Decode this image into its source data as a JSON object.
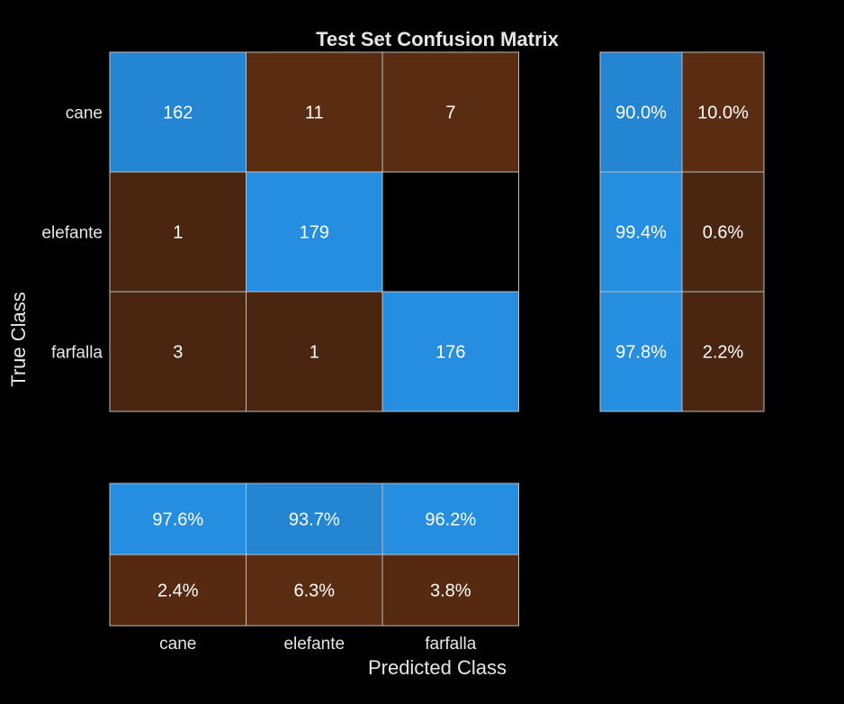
{
  "chart_data": {
    "type": "heatmap",
    "title": "Test Set Confusion Matrix",
    "xlabel": "Predicted Class",
    "ylabel": "True Class",
    "classes": [
      "cane",
      "elefante",
      "farfalla"
    ],
    "matrix": [
      [
        "162",
        "11",
        "7"
      ],
      [
        "1",
        "179",
        ""
      ],
      [
        "3",
        "1",
        "176"
      ]
    ],
    "row_summary": [
      [
        "90.0%",
        "10.0%"
      ],
      [
        "99.4%",
        "0.6%"
      ],
      [
        "97.8%",
        "2.2%"
      ]
    ],
    "column_summary": [
      [
        "97.6%",
        "93.7%",
        "96.2%"
      ],
      [
        "2.4%",
        "6.3%",
        "3.8%"
      ]
    ],
    "grid": false,
    "colors": {
      "correct_high": "#268ee0",
      "correct_mid": "#2485d3",
      "incorrect_high": "#5a2d12",
      "incorrect_mid": "#552a10",
      "incorrect_low": "#4a250f",
      "zero": "#000000",
      "background": "#000000",
      "cell_border": "#bfbfbf",
      "text": "#ffffff"
    }
  }
}
